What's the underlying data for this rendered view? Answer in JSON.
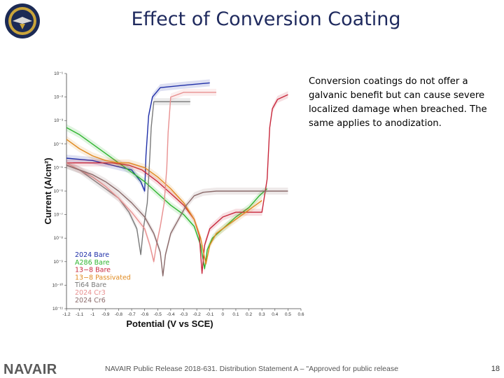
{
  "page": {
    "title": "Effect of Conversion Coating",
    "description": "Conversion coatings do not offer a galvanic benefit but can cause severe localized damage when breached. The same applies to anodization.",
    "footer_brand": "NAVAIR",
    "footer_note": "NAVAIR Public Release 2018-631. Distribution Statement A – \"Approved for public release; distribution is unlimited\"",
    "page_number": "18"
  },
  "chart_data": {
    "type": "line",
    "title": "",
    "xlabel": "Potential (V vs SCE)",
    "ylabel": "Current (A/cm²)",
    "ylog": true,
    "xlim": [
      -1.2,
      0.6
    ],
    "ylim_exp": [
      -11,
      -1
    ],
    "x_ticks": [
      "-1.2",
      "-1.1",
      "-1",
      "-0.9",
      "-0.8",
      "-0.7",
      "-0.6",
      "-0.5",
      "-0.4",
      "-0.3",
      "-0.2",
      "-0.1",
      "0",
      "0.1",
      "0.2",
      "0.3",
      "0.4",
      "0.5",
      "0.6"
    ],
    "y_ticks": [
      "10⁻¹",
      "10⁻²",
      "10⁻³",
      "10⁻⁴",
      "10⁻⁵",
      "10⁻⁶",
      "10⁻⁷",
      "10⁻⁸",
      "10⁻⁹",
      "10⁻¹⁰",
      "10⁻¹¹"
    ],
    "legend_position": "bottom-left",
    "series": [
      {
        "name": "2024 Bare",
        "color": "#1f2fa8",
        "points": [
          [
            -1.2,
            -4.6
          ],
          [
            -1.0,
            -4.7
          ],
          [
            -0.85,
            -4.9
          ],
          [
            -0.7,
            -5.1
          ],
          [
            -0.63,
            -5.6
          ],
          [
            -0.6,
            -6.0
          ],
          [
            -0.59,
            -4.5
          ],
          [
            -0.57,
            -2.8
          ],
          [
            -0.54,
            -2.0
          ],
          [
            -0.48,
            -1.6
          ],
          [
            -0.3,
            -1.5
          ],
          [
            -0.1,
            -1.4
          ]
        ]
      },
      {
        "name": "A286 Bare",
        "color": "#2fb52f",
        "points": [
          [
            -1.2,
            -3.3
          ],
          [
            -1.1,
            -3.6
          ],
          [
            -1.0,
            -4.0
          ],
          [
            -0.9,
            -4.4
          ],
          [
            -0.8,
            -4.8
          ],
          [
            -0.7,
            -5.2
          ],
          [
            -0.6,
            -5.6
          ],
          [
            -0.5,
            -6.1
          ],
          [
            -0.4,
            -6.6
          ],
          [
            -0.3,
            -7.0
          ],
          [
            -0.22,
            -7.5
          ],
          [
            -0.17,
            -8.3
          ],
          [
            -0.14,
            -9.3
          ],
          [
            -0.12,
            -8.5
          ],
          [
            -0.08,
            -8.0
          ],
          [
            0.0,
            -7.6
          ],
          [
            0.1,
            -7.1
          ],
          [
            0.2,
            -6.7
          ],
          [
            0.28,
            -6.2
          ],
          [
            0.34,
            -5.9
          ]
        ]
      },
      {
        "name": "13−8 Bare",
        "color": "#c8283c",
        "points": [
          [
            -1.2,
            -4.8
          ],
          [
            -1.0,
            -4.8
          ],
          [
            -0.85,
            -4.8
          ],
          [
            -0.72,
            -4.9
          ],
          [
            -0.62,
            -5.1
          ],
          [
            -0.5,
            -5.6
          ],
          [
            -0.4,
            -6.1
          ],
          [
            -0.3,
            -6.6
          ],
          [
            -0.22,
            -7.2
          ],
          [
            -0.18,
            -7.9
          ],
          [
            -0.16,
            -9.5
          ],
          [
            -0.14,
            -8.3
          ],
          [
            -0.1,
            -7.6
          ],
          [
            0.0,
            -7.1
          ],
          [
            0.1,
            -6.9
          ],
          [
            0.2,
            -6.9
          ],
          [
            0.3,
            -6.9
          ],
          [
            0.34,
            -5.5
          ],
          [
            0.36,
            -3.3
          ],
          [
            0.38,
            -2.5
          ],
          [
            0.42,
            -2.1
          ],
          [
            0.5,
            -1.9
          ]
        ]
      },
      {
        "name": "13−8 Passivated",
        "color": "#e08a20",
        "points": [
          [
            -1.2,
            -3.8
          ],
          [
            -1.1,
            -4.2
          ],
          [
            -1.0,
            -4.5
          ],
          [
            -0.9,
            -4.7
          ],
          [
            -0.8,
            -4.8
          ],
          [
            -0.72,
            -4.8
          ],
          [
            -0.6,
            -5.0
          ],
          [
            -0.5,
            -5.4
          ],
          [
            -0.4,
            -5.9
          ],
          [
            -0.3,
            -6.5
          ],
          [
            -0.22,
            -7.2
          ],
          [
            -0.17,
            -8.0
          ],
          [
            -0.13,
            -9.1
          ],
          [
            -0.1,
            -8.3
          ],
          [
            -0.05,
            -7.8
          ],
          [
            0.05,
            -7.4
          ],
          [
            0.15,
            -7.0
          ],
          [
            0.25,
            -6.6
          ],
          [
            0.3,
            -6.4
          ]
        ]
      },
      {
        "name": "Ti64 Bare",
        "color": "#7a7a7a",
        "points": [
          [
            -1.2,
            -4.9
          ],
          [
            -1.1,
            -5.1
          ],
          [
            -1.0,
            -5.5
          ],
          [
            -0.9,
            -5.9
          ],
          [
            -0.8,
            -6.3
          ],
          [
            -0.72,
            -6.9
          ],
          [
            -0.66,
            -7.6
          ],
          [
            -0.63,
            -8.7
          ],
          [
            -0.61,
            -7.6
          ],
          [
            -0.58,
            -6.5
          ],
          [
            -0.56,
            -4.5
          ],
          [
            -0.55,
            -3.3
          ],
          [
            -0.53,
            -2.2
          ],
          [
            -0.4,
            -2.2
          ],
          [
            -0.25,
            -2.2
          ]
        ]
      },
      {
        "name": "2024 Cr3",
        "color": "#e89090",
        "points": [
          [
            -1.2,
            -4.8
          ],
          [
            -1.1,
            -5.1
          ],
          [
            -1.0,
            -5.4
          ],
          [
            -0.9,
            -5.8
          ],
          [
            -0.8,
            -6.3
          ],
          [
            -0.7,
            -6.9
          ],
          [
            -0.6,
            -7.6
          ],
          [
            -0.56,
            -8.3
          ],
          [
            -0.53,
            -9.0
          ],
          [
            -0.51,
            -8.3
          ],
          [
            -0.48,
            -7.5
          ],
          [
            -0.45,
            -6.5
          ],
          [
            -0.43,
            -5.0
          ],
          [
            -0.42,
            -3.5
          ],
          [
            -0.4,
            -2.0
          ],
          [
            -0.3,
            -1.8
          ],
          [
            -0.05,
            -1.8
          ]
        ]
      },
      {
        "name": "2024 Cr6",
        "color": "#8a6a6a",
        "points": [
          [
            -1.2,
            -4.9
          ],
          [
            -1.1,
            -5.1
          ],
          [
            -1.0,
            -5.3
          ],
          [
            -0.9,
            -5.6
          ],
          [
            -0.8,
            -6.0
          ],
          [
            -0.7,
            -6.5
          ],
          [
            -0.6,
            -7.1
          ],
          [
            -0.53,
            -7.8
          ],
          [
            -0.48,
            -8.6
          ],
          [
            -0.46,
            -9.6
          ],
          [
            -0.44,
            -8.7
          ],
          [
            -0.4,
            -7.8
          ],
          [
            -0.34,
            -7.2
          ],
          [
            -0.28,
            -6.6
          ],
          [
            -0.22,
            -6.2
          ],
          [
            -0.15,
            -6.05
          ],
          [
            -0.05,
            -6.0
          ],
          [
            0.15,
            -6.0
          ],
          [
            0.35,
            -6.0
          ],
          [
            0.5,
            -6.0
          ]
        ]
      }
    ]
  }
}
